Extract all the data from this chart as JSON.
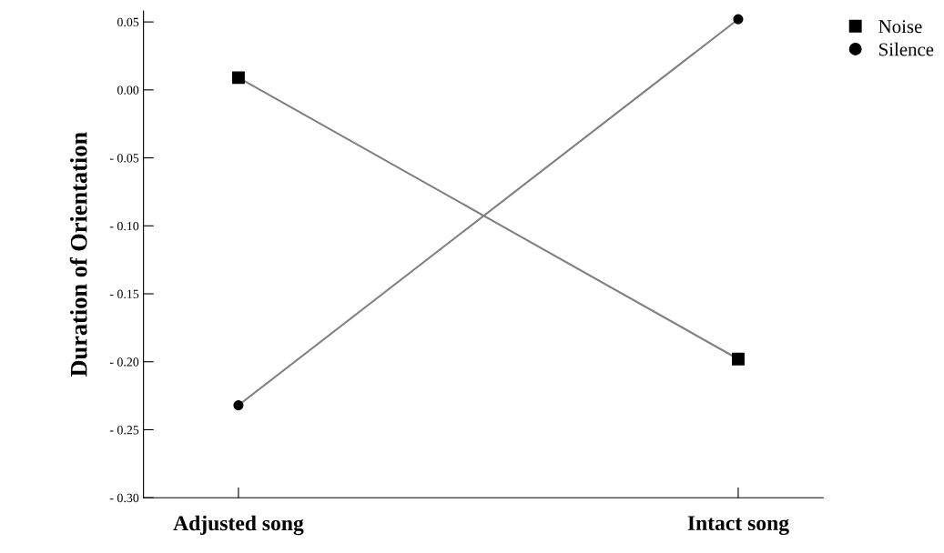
{
  "chart_data": {
    "type": "line",
    "ylabel": "Duration of Orientation",
    "categories": [
      "Adjusted song",
      "Intact song"
    ],
    "series": [
      {
        "name": "Noise",
        "color": "#808080",
        "marker": "square",
        "values": [
          0.009,
          -0.198
        ]
      },
      {
        "name": "Silence",
        "color": "#808080",
        "marker": "circle",
        "values": [
          -0.232,
          0.052
        ]
      }
    ],
    "ylim": [
      -0.3,
      0.058
    ],
    "yticks": [
      {
        "value": 0.05,
        "label": "0.05"
      },
      {
        "value": 0.0,
        "label": "0.00"
      },
      {
        "value": -0.05,
        "label": "- 0.05"
      },
      {
        "value": -0.1,
        "label": "- 0.10"
      },
      {
        "value": -0.15,
        "label": "- 0.15"
      },
      {
        "value": -0.2,
        "label": "- 0.20"
      },
      {
        "value": -0.25,
        "label": "- 0.25"
      },
      {
        "value": -0.3,
        "label": "- 0.30"
      }
    ],
    "grid": false,
    "legend": "top right",
    "line_style": "solid"
  }
}
